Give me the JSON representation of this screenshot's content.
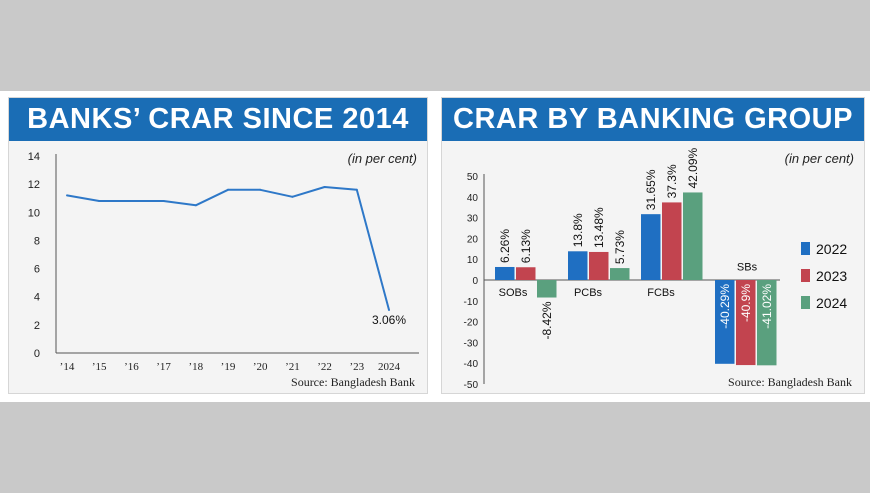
{
  "colors": {
    "banner": "#1a6db5",
    "line": "#2e78c8",
    "series_2022": "#1f6fc2",
    "series_2023": "#c2444f",
    "series_2024": "#5aa07e"
  },
  "left_panel": {
    "title": "BANKS’ CRAR SINCE 2014",
    "unit_note": "(in per cent)",
    "source": "Source: Bangladesh Bank"
  },
  "right_panel": {
    "title": "CRAR BY BANKING GROUP",
    "unit_note": "(in per cent)",
    "source": "Source: Bangladesh Bank"
  },
  "chart_data": [
    {
      "type": "line",
      "title": "BANKS’ CRAR SINCE 2014",
      "x": [
        "’14",
        "’15",
        "’16",
        "’17",
        "’18",
        "’19",
        "’20",
        "’21",
        "’22",
        "’23",
        "2024"
      ],
      "series": [
        {
          "values": [
            11.2,
            10.8,
            10.8,
            10.8,
            10.5,
            11.6,
            11.6,
            11.1,
            11.8,
            11.6,
            3.06
          ]
        }
      ],
      "data_labels": [
        {
          "x": "2024",
          "text": "3.06%"
        }
      ],
      "yticks": [
        "0",
        "2",
        "4",
        "6",
        "8",
        "10",
        "12",
        "14"
      ],
      "ylim": [
        0,
        14
      ],
      "grid": false
    },
    {
      "type": "bar",
      "title": "CRAR BY BANKING GROUP",
      "categories": [
        "SOBs",
        "PCBs",
        "FCBs",
        "SBs"
      ],
      "series": [
        {
          "name": "2022",
          "values": [
            6.26,
            13.8,
            31.65,
            -40.29
          ],
          "labels": [
            "6.26%",
            "13.8%",
            "31.65%",
            "-40.29%"
          ]
        },
        {
          "name": "2023",
          "values": [
            6.13,
            13.48,
            37.3,
            -40.9
          ],
          "labels": [
            "6.13%",
            "13.48%",
            "37.3%",
            "-40.9%"
          ]
        },
        {
          "name": "2024",
          "values": [
            -8.42,
            5.73,
            42.09,
            -41.02
          ],
          "labels": [
            "-8.42%",
            "5.73%",
            "42.09%",
            "-41.02%"
          ]
        }
      ],
      "yticks": [
        "-50",
        "-40",
        "-30",
        "-20",
        "-10",
        "0",
        "10",
        "20",
        "30",
        "40",
        "50"
      ],
      "ylim": [
        -50,
        50
      ],
      "legend_position": "right",
      "grid": false
    }
  ]
}
